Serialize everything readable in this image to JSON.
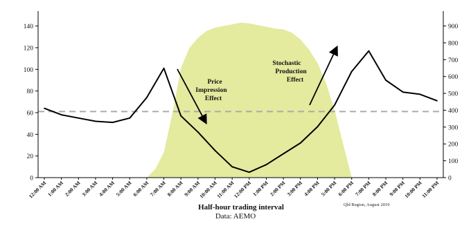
{
  "chart_data": {
    "type": "line",
    "xlabel": "Half-hour trading interval",
    "source": "Data: AEMO",
    "credit": "Qld Region, August 2019",
    "categories": [
      "12:00 AM",
      "1:00 AM",
      "2:00 AM",
      "3:00 AM",
      "4:00 AM",
      "5:00 AM",
      "6:00 AM",
      "7:00 AM",
      "8:00 AM",
      "9:00 AM",
      "10:00 AM",
      "11:00 AM",
      "12:00 PM",
      "1:00 PM",
      "2:00 PM",
      "3:00 PM",
      "4:00 PM",
      "5:00 PM",
      "6:00 PM",
      "7:00 PM",
      "8:00 PM",
      "9:00 PM",
      "10:00 PM",
      "11:00 PM"
    ],
    "y_left": {
      "ticks": [
        0,
        20,
        40,
        60,
        80,
        100,
        120,
        140
      ],
      "ylim": [
        0,
        150
      ]
    },
    "y_right": {
      "ticks": [
        0,
        100,
        200,
        300,
        400,
        500,
        600,
        700,
        800,
        900
      ],
      "ylim": [
        0,
        964
      ]
    },
    "series": [
      {
        "axis": "left",
        "color": "#000000",
        "x": [
          0,
          1,
          2,
          3,
          4,
          5,
          6,
          7,
          8,
          9,
          10,
          11,
          12,
          13,
          14,
          15,
          16,
          17,
          18,
          19,
          20,
          21,
          22,
          23
        ],
        "values": [
          64,
          58,
          55,
          52,
          51,
          55,
          74,
          101,
          57,
          42,
          25,
          10,
          5,
          12,
          22,
          32,
          47,
          67,
          98,
          117,
          90,
          79,
          77,
          71
        ]
      },
      {
        "axis": "right",
        "color": "#e4ea9e",
        "type": "area",
        "x": [
          6,
          6.5,
          7,
          7.5,
          8,
          8.5,
          9,
          9.5,
          10,
          10.5,
          11,
          11.5,
          12,
          12.5,
          13,
          13.5,
          14,
          14.5,
          15,
          15.5,
          16,
          16.5,
          17,
          17.5,
          18
        ],
        "values": [
          0,
          50,
          150,
          380,
          650,
          770,
          830,
          870,
          890,
          900,
          910,
          920,
          915,
          905,
          895,
          885,
          880,
          860,
          820,
          760,
          680,
          560,
          400,
          200,
          0
        ]
      }
    ],
    "reference_line": {
      "axis": "left",
      "value": 61,
      "style": "dashed",
      "color": "#aaaaaa"
    },
    "annotations": [
      {
        "lines": [
          "Price",
          "Impression",
          "Effect"
        ]
      },
      {
        "lines": [
          "Stochastic",
          "Production",
          "Effect"
        ]
      }
    ],
    "grid": false,
    "legend": "none"
  }
}
